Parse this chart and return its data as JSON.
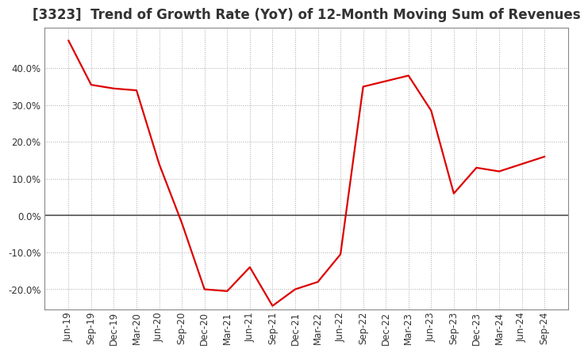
{
  "title": "[3323]  Trend of Growth Rate (YoY) of 12-Month Moving Sum of Revenues",
  "title_fontsize": 12,
  "line_color": "#dd0000",
  "background_color": "#ffffff",
  "grid_color": "#aaaaaa",
  "zero_line_color": "#555555",
  "x_labels": [
    "Jun-19",
    "Sep-19",
    "Dec-19",
    "Mar-20",
    "Jun-20",
    "Sep-20",
    "Dec-20",
    "Mar-21",
    "Jun-21",
    "Sep-21",
    "Dec-21",
    "Mar-22",
    "Jun-22",
    "Sep-22",
    "Dec-22",
    "Mar-23",
    "Jun-23",
    "Sep-23",
    "Dec-23",
    "Mar-24",
    "Jun-24",
    "Sep-24"
  ],
  "y_values": [
    47.5,
    35.5,
    34.5,
    34.0,
    14.0,
    -2.0,
    -20.0,
    -20.5,
    -14.0,
    -24.5,
    -20.0,
    -18.0,
    -10.5,
    35.0,
    36.5,
    38.0,
    28.5,
    6.0,
    13.0,
    12.0,
    14.0,
    16.0
  ],
  "ylim": [
    -25.5,
    51.0
  ],
  "yticks": [
    -20.0,
    -10.0,
    0.0,
    10.0,
    20.0,
    30.0,
    40.0
  ],
  "line_width": 1.6,
  "tick_fontsize": 8.5,
  "border_color": "#888888"
}
